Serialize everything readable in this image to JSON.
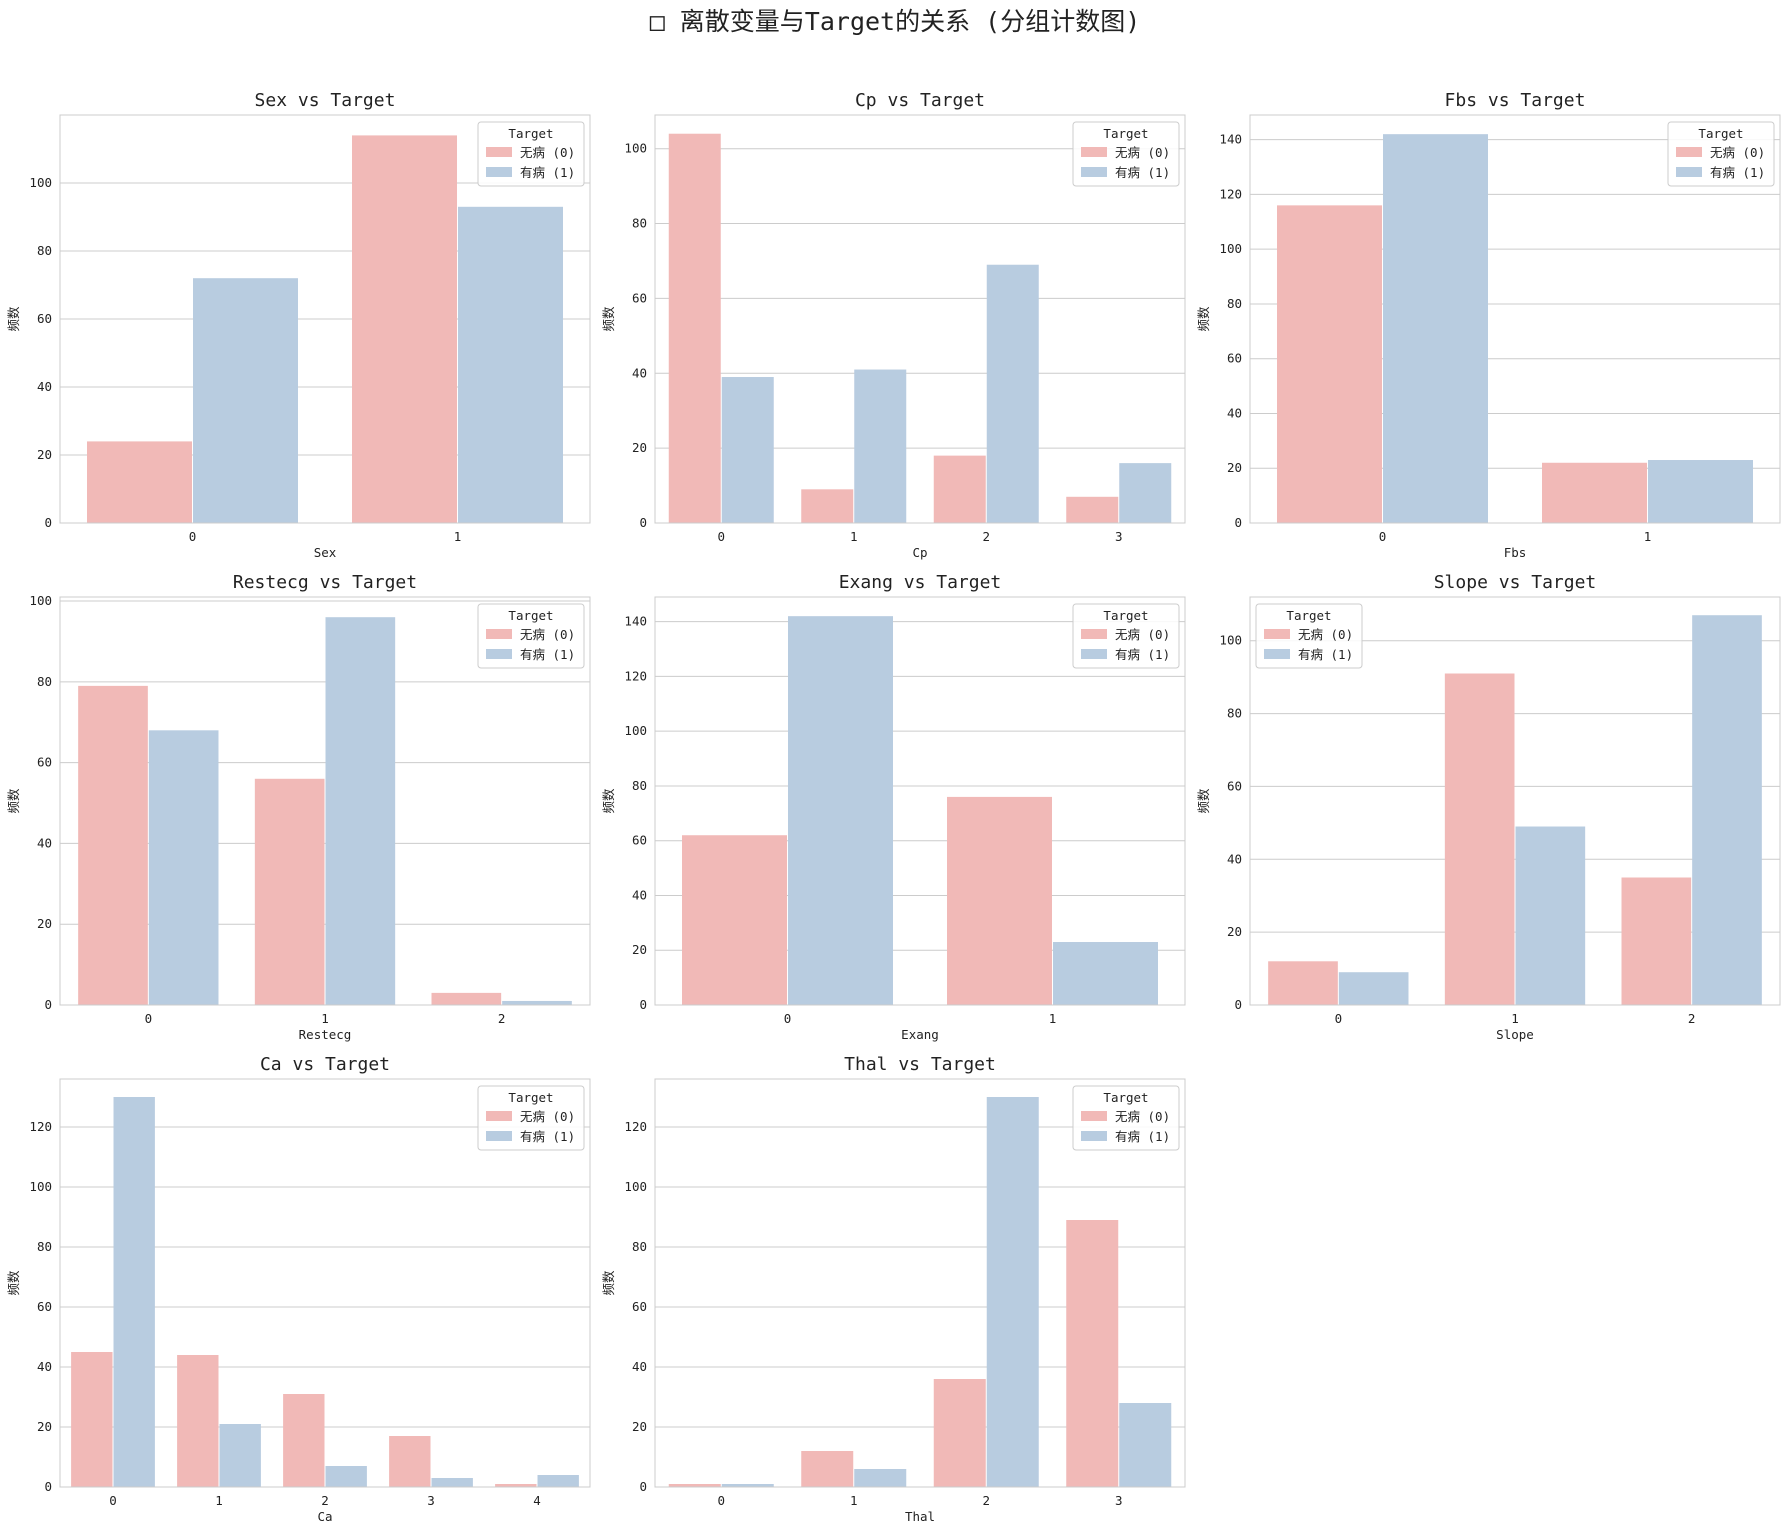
{
  "figure_title": "□ 离散变量与Target的关系 (分组计数图)",
  "colors": {
    "no_disease": "#f1b9b7",
    "disease": "#b8cce0",
    "grid": "#cccccc",
    "frame": "#cccccc"
  },
  "chart_data": [
    {
      "type": "bar",
      "title": "Sex vs Target",
      "xlabel": "Sex",
      "ylabel": "频数",
      "categories": [
        "0",
        "1"
      ],
      "ylim": [
        0,
        120
      ],
      "yticks": [
        0,
        20,
        40,
        60,
        80,
        100
      ],
      "legend_title": "Target",
      "legend_position": "top-right",
      "series": [
        {
          "name": "无病 (0)",
          "values": [
            24,
            114
          ]
        },
        {
          "name": "有病 (1)",
          "values": [
            72,
            93
          ]
        }
      ]
    },
    {
      "type": "bar",
      "title": "Cp vs Target",
      "xlabel": "Cp",
      "ylabel": "频数",
      "categories": [
        "0",
        "1",
        "2",
        "3"
      ],
      "ylim": [
        0,
        109
      ],
      "yticks": [
        0,
        20,
        40,
        60,
        80,
        100
      ],
      "legend_title": "Target",
      "legend_position": "top-right",
      "series": [
        {
          "name": "无病 (0)",
          "values": [
            104,
            9,
            18,
            7
          ]
        },
        {
          "name": "有病 (1)",
          "values": [
            39,
            41,
            69,
            16
          ]
        }
      ]
    },
    {
      "type": "bar",
      "title": "Fbs vs Target",
      "xlabel": "Fbs",
      "ylabel": "频数",
      "categories": [
        "0",
        "1"
      ],
      "ylim": [
        0,
        149
      ],
      "yticks": [
        0,
        20,
        40,
        60,
        80,
        100,
        120,
        140
      ],
      "legend_title": "Target",
      "legend_position": "top-right",
      "series": [
        {
          "name": "无病 (0)",
          "values": [
            116,
            22
          ]
        },
        {
          "name": "有病 (1)",
          "values": [
            142,
            23
          ]
        }
      ]
    },
    {
      "type": "bar",
      "title": "Restecg vs Target",
      "xlabel": "Restecg",
      "ylabel": "频数",
      "categories": [
        "0",
        "1",
        "2"
      ],
      "ylim": [
        0,
        101
      ],
      "yticks": [
        0,
        20,
        40,
        60,
        80,
        100
      ],
      "legend_title": "Target",
      "legend_position": "top-right",
      "series": [
        {
          "name": "无病 (0)",
          "values": [
            79,
            56,
            3
          ]
        },
        {
          "name": "有病 (1)",
          "values": [
            68,
            96,
            1
          ]
        }
      ]
    },
    {
      "type": "bar",
      "title": "Exang vs Target",
      "xlabel": "Exang",
      "ylabel": "频数",
      "categories": [
        "0",
        "1"
      ],
      "ylim": [
        0,
        149
      ],
      "yticks": [
        0,
        20,
        40,
        60,
        80,
        100,
        120,
        140
      ],
      "legend_title": "Target",
      "legend_position": "top-right",
      "series": [
        {
          "name": "无病 (0)",
          "values": [
            62,
            76
          ]
        },
        {
          "name": "有病 (1)",
          "values": [
            142,
            23
          ]
        }
      ]
    },
    {
      "type": "bar",
      "title": "Slope vs Target",
      "xlabel": "Slope",
      "ylabel": "频数",
      "categories": [
        "0",
        "1",
        "2"
      ],
      "ylim": [
        0,
        112
      ],
      "yticks": [
        0,
        20,
        40,
        60,
        80,
        100
      ],
      "legend_title": "Target",
      "legend_position": "top-left",
      "series": [
        {
          "name": "无病 (0)",
          "values": [
            12,
            91,
            35
          ]
        },
        {
          "name": "有病 (1)",
          "values": [
            9,
            49,
            107
          ]
        }
      ]
    },
    {
      "type": "bar",
      "title": "Ca vs Target",
      "xlabel": "Ca",
      "ylabel": "频数",
      "categories": [
        "0",
        "1",
        "2",
        "3",
        "4"
      ],
      "ylim": [
        0,
        136
      ],
      "yticks": [
        0,
        20,
        40,
        60,
        80,
        100,
        120
      ],
      "legend_title": "Target",
      "legend_position": "top-right",
      "series": [
        {
          "name": "无病 (0)",
          "values": [
            45,
            44,
            31,
            17,
            1
          ]
        },
        {
          "name": "有病 (1)",
          "values": [
            130,
            21,
            7,
            3,
            4
          ]
        }
      ]
    },
    {
      "type": "bar",
      "title": "Thal vs Target",
      "xlabel": "Thal",
      "ylabel": "频数",
      "categories": [
        "0",
        "1",
        "2",
        "3"
      ],
      "ylim": [
        0,
        136
      ],
      "yticks": [
        0,
        20,
        40,
        60,
        80,
        100,
        120
      ],
      "legend_title": "Target",
      "legend_position": "top-right",
      "series": [
        {
          "name": "无病 (0)",
          "values": [
            1,
            12,
            36,
            89
          ]
        },
        {
          "name": "有病 (1)",
          "values": [
            1,
            6,
            130,
            28
          ]
        }
      ]
    }
  ]
}
